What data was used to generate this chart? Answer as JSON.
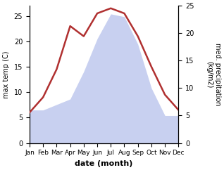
{
  "months": [
    "Jan",
    "Feb",
    "Mar",
    "Apr",
    "May",
    "Jun",
    "Jul",
    "Aug",
    "Sep",
    "Oct",
    "Nov",
    "Dec"
  ],
  "temperature": [
    6.0,
    9.0,
    14.5,
    23.0,
    21.0,
    25.5,
    26.5,
    25.5,
    21.0,
    15.0,
    9.5,
    6.5
  ],
  "precipitation": [
    6.0,
    6.0,
    7.0,
    8.0,
    13.0,
    19.0,
    23.5,
    23.0,
    18.0,
    10.0,
    5.0,
    5.0
  ],
  "temp_color": "#b03030",
  "precip_fill_color": "#c8d0f0",
  "ylabel_left": "max temp (C)",
  "ylabel_right": "med. precipitation\n(kg/m2)",
  "xlabel": "date (month)",
  "ylim_left": [
    0,
    27
  ],
  "ylim_right": [
    0,
    25
  ],
  "yticks_left": [
    0,
    5,
    10,
    15,
    20,
    25
  ],
  "yticks_right": [
    0,
    5,
    10,
    15,
    20,
    25
  ],
  "background_color": "#ffffff"
}
